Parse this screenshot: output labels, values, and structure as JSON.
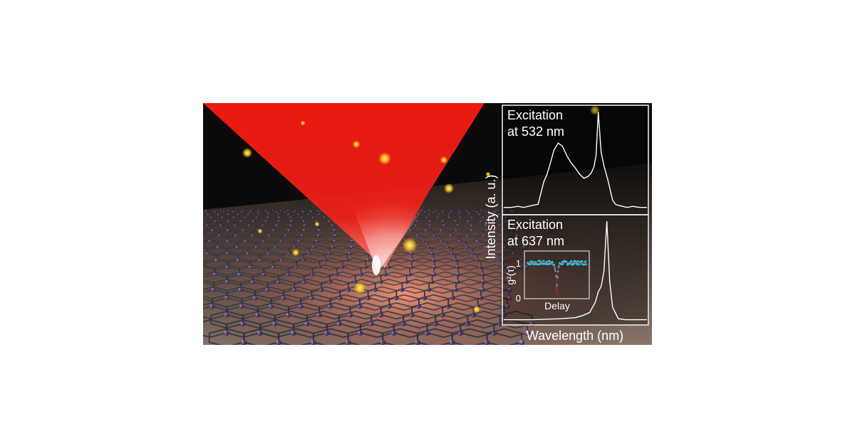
{
  "figure": {
    "y_axis_label": "Intensity (a. u.)",
    "x_axis_label": "Wavelength (nm)"
  },
  "chart_data": [
    {
      "type": "line",
      "panel": "top",
      "title_lines": [
        "Excitation",
        "at 532 nm"
      ],
      "xlabel": "Wavelength (nm)",
      "ylabel": "Intensity (a. u.)",
      "x": [
        0,
        0.05,
        0.1,
        0.14,
        0.17,
        0.2,
        0.24,
        0.28,
        0.3,
        0.32,
        0.35,
        0.38,
        0.41,
        0.44,
        0.47,
        0.5,
        0.53,
        0.56,
        0.59,
        0.61,
        0.63,
        0.645,
        0.66,
        0.68,
        0.7,
        0.73,
        0.76,
        0.78,
        0.8,
        0.83,
        0.86,
        0.9,
        0.95,
        1
      ],
      "values": [
        0.05,
        0.05,
        0.06,
        0.05,
        0.06,
        0.07,
        0.08,
        0.3,
        0.36,
        0.45,
        0.6,
        0.67,
        0.64,
        0.55,
        0.48,
        0.43,
        0.37,
        0.33,
        0.35,
        0.38,
        0.44,
        0.55,
        0.97,
        0.58,
        0.45,
        0.3,
        0.12,
        0.08,
        0.07,
        0.06,
        0.05,
        0.06,
        0.05,
        0.05
      ],
      "xlim": [
        0,
        1
      ],
      "ylim": [
        0,
        1
      ],
      "grid": false
    },
    {
      "type": "line",
      "panel": "bottom",
      "title_lines": [
        "Excitation",
        "at 637 nm"
      ],
      "xlabel": "Wavelength (nm)",
      "ylabel": "Intensity (a. u.)",
      "x": [
        0,
        0.2,
        0.4,
        0.5,
        0.55,
        0.6,
        0.62,
        0.64,
        0.66,
        0.68,
        0.7,
        0.72,
        0.74,
        0.76,
        0.8,
        0.85,
        1
      ],
      "values": [
        0.03,
        0.03,
        0.04,
        0.05,
        0.07,
        0.1,
        0.15,
        0.2,
        0.3,
        0.35,
        0.5,
        0.98,
        0.4,
        0.15,
        0.04,
        0.03,
        0.03
      ],
      "xlim": [
        0,
        1
      ],
      "ylim": [
        0,
        1
      ],
      "grid": false,
      "inset": {
        "type": "scatter",
        "xlabel": "Delay",
        "ylabel": "g²(τ)",
        "yticks": [
          "0",
          "1"
        ],
        "ylim": [
          0,
          1.3
        ],
        "xlim": [
          -1,
          1
        ],
        "data_color": "#2ec4e6",
        "fit_color": "#e02020",
        "level": 1.0,
        "dip_min": 0.1
      }
    }
  ]
}
